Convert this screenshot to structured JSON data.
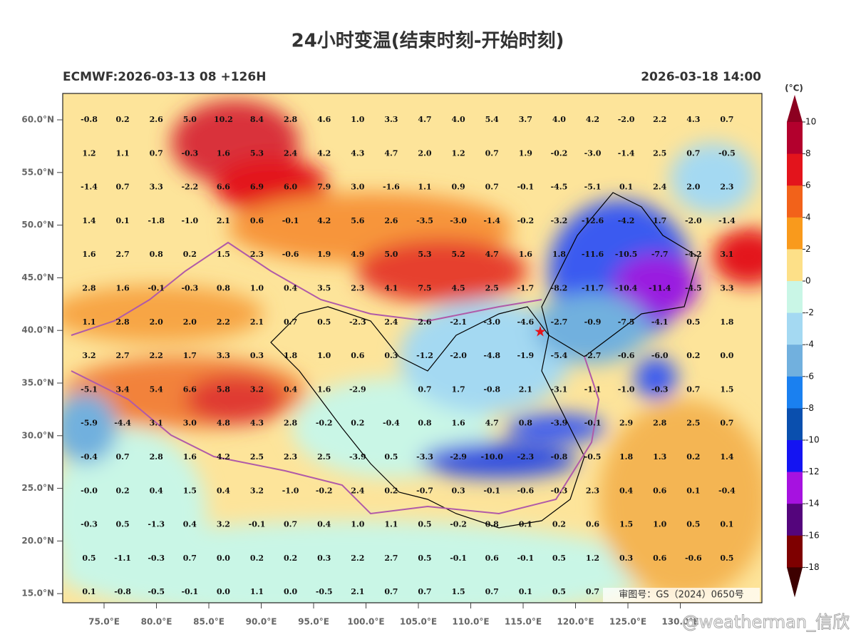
{
  "header": {
    "title": "24小时变温(结束时刻-开始时刻)",
    "model_run": "ECMWF:2026-03-13 08 +126H",
    "valid_time": "2026-03-18 14:00"
  },
  "map": {
    "lat_labels": [
      "60.0°N",
      "55.0°N",
      "50.0°N",
      "45.0°N",
      "40.0°N",
      "35.0°N",
      "30.0°N",
      "25.0°N",
      "20.0°N",
      "15.0°N"
    ],
    "lon_labels": [
      "75.0°E",
      "80.0°E",
      "85.0°E",
      "90.0°E",
      "95.0°E",
      "100.0°E",
      "105.0°E",
      "110.0°E",
      "115.0°E",
      "120.0°E",
      "125.0°E",
      "130.0°E"
    ],
    "grid_values": [
      [
        "-0.8",
        "0.2",
        "2.6",
        "5.0",
        "10.2",
        "8.4",
        "2.8",
        "4.6",
        "1.0",
        "3.3",
        "4.7",
        "4.0",
        "5.4",
        "3.7",
        "4.0",
        "4.2",
        "-2.0",
        "2.2",
        "4.3",
        "0.7"
      ],
      [
        "1.2",
        "1.1",
        "0.7",
        "-0.3",
        "1.6",
        "5.3",
        "2.4",
        "4.2",
        "4.3",
        "4.7",
        "2.0",
        "1.2",
        "0.7",
        "1.9",
        "-0.2",
        "-3.0",
        "-1.4",
        "2.5",
        "0.7",
        "-0.5"
      ],
      [
        "-1.4",
        "0.7",
        "3.3",
        "-2.2",
        "6.6",
        "6.9",
        "6.0",
        "7.9",
        "3.0",
        "-1.6",
        "1.1",
        "0.9",
        "0.7",
        "-0.1",
        "-4.5",
        "-5.1",
        "0.1",
        "2.4",
        "2.0",
        "2.3"
      ],
      [
        "1.4",
        "0.1",
        "-1.8",
        "-1.0",
        "2.1",
        "0.6",
        "-0.1",
        "4.2",
        "5.6",
        "2.6",
        "-3.5",
        "-3.0",
        "-1.4",
        "-0.2",
        "-3.2",
        "-12.6",
        "-4.2",
        "1.7",
        "-2.0",
        "-1.4"
      ],
      [
        "1.6",
        "2.7",
        "0.8",
        "0.2",
        "1.5",
        "2.3",
        "-0.6",
        "1.9",
        "4.9",
        "5.0",
        "5.3",
        "5.2",
        "4.7",
        "1.6",
        "1.8",
        "-11.6",
        "-10.5",
        "-7.7",
        "-4.2",
        "3.1"
      ],
      [
        "2.8",
        "1.6",
        "-0.1",
        "-0.3",
        "0.8",
        "1.0",
        "0.4",
        "3.5",
        "2.3",
        "4.1",
        "7.5",
        "4.5",
        "2.5",
        "-1.7",
        "-8.2",
        "-11.7",
        "-10.4",
        "-11.4",
        "-4.5",
        "3.3"
      ],
      [
        "1.1",
        "2.8",
        "2.0",
        "2.0",
        "2.2",
        "2.1",
        "0.7",
        "0.5",
        "-2.3",
        "2.4",
        "2.6",
        "-2.1",
        "-3.0",
        "-4.6",
        "-2.7",
        "-0.9",
        "-7.5",
        "-4.1",
        "0.5",
        "1.8"
      ],
      [
        "3.2",
        "2.7",
        "2.2",
        "1.7",
        "3.3",
        "0.3",
        "1.8",
        "1.0",
        "0.6",
        "0.3",
        "-1.2",
        "-2.0",
        "-4.8",
        "-1.9",
        "-5.4",
        "-2.7",
        "-0.6",
        "-6.0",
        "0.2",
        "0.0"
      ],
      [
        "-5.1",
        "3.4",
        "5.4",
        "6.6",
        "5.8",
        "3.2",
        "0.4",
        "1.6",
        "-2.9",
        null,
        "0.7",
        "1.7",
        "-0.8",
        "2.1",
        "-3.1",
        "-1.1",
        "-1.0",
        "-0.3",
        "0.7",
        "1.5"
      ],
      [
        "-5.9",
        "-4.4",
        "3.1",
        "3.0",
        "4.8",
        "4.3",
        "2.8",
        "-0.2",
        "0.2",
        "-0.4",
        "0.8",
        "1.6",
        "4.7",
        "0.8",
        "-3.9",
        "-0.1",
        "2.9",
        "2.8",
        "2.5",
        "0.7"
      ],
      [
        "-0.4",
        "0.7",
        "2.8",
        "1.6",
        "4.2",
        "2.5",
        "2.3",
        "2.5",
        "-3.9",
        "0.5",
        "-3.3",
        "-2.9",
        "-10.0",
        "-2.3",
        "-0.8",
        "-0.5",
        "1.8",
        "1.3",
        "0.2",
        "1.4"
      ],
      [
        "-0.0",
        "0.2",
        "0.4",
        "1.5",
        "0.4",
        "3.2",
        "-1.0",
        "-0.2",
        "2.4",
        "0.2",
        "-0.7",
        "0.3",
        "-0.1",
        "-0.6",
        "-0.3",
        "2.3",
        "0.4",
        "0.6",
        "0.1",
        "-0.4"
      ],
      [
        "-0.3",
        "0.5",
        "-1.3",
        "0.4",
        "3.2",
        "-0.1",
        "0.7",
        "0.4",
        "1.0",
        "1.1",
        "0.5",
        "-0.2",
        "0.8",
        "0.1",
        "0.2",
        "0.6",
        "1.5",
        "1.0",
        "0.5",
        "0.1"
      ],
      [
        "0.5",
        "-1.1",
        "-0.3",
        "0.7",
        "0.0",
        "0.2",
        "0.2",
        "0.3",
        "2.2",
        "2.7",
        "0.5",
        "-0.1",
        "0.6",
        "-0.1",
        "0.5",
        "1.2",
        "0.3",
        "0.6",
        "-0.6",
        "0.5"
      ],
      [
        "0.1",
        "-0.8",
        "-0.5",
        "-0.1",
        "0.0",
        "1.1",
        "0.0",
        "-0.5",
        "2.1",
        "0.7",
        "0.7",
        "1.5",
        "0.7",
        "0.1",
        "0.5",
        "0.7",
        null,
        null,
        null,
        null
      ]
    ],
    "review_number": "审图号：GS（2024）0650号"
  },
  "colorbar": {
    "unit": "(°C)",
    "ticks": [
      10,
      8,
      6,
      4,
      2,
      0,
      -2,
      -4,
      -6,
      -8,
      -10,
      -12,
      -14,
      -16,
      -18
    ],
    "colors": [
      "#b3002d",
      "#e3141c",
      "#f2621a",
      "#f99a1c",
      "#fde088",
      "#c9f6e6",
      "#a4d9f2",
      "#71b0de",
      "#1a80f0",
      "#0a4fae",
      "#1414f2",
      "#a612e0",
      "#54057c",
      "#7e0000"
    ],
    "top_color": "#8c0020",
    "bottom_color": "#3d0000"
  },
  "watermark": "@weatherman_信欣"
}
